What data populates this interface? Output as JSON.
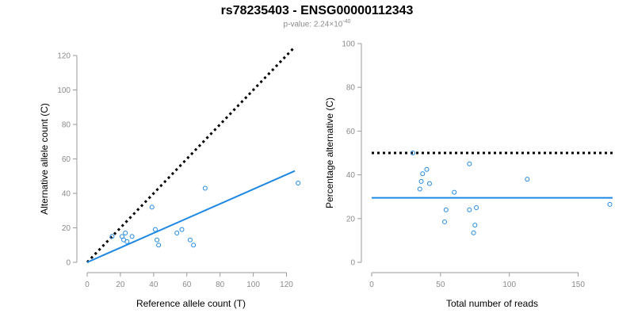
{
  "title": "rs78235403 - ENSG00000112343",
  "subtitle": {
    "prefix": "p-value: 2.24×10",
    "exponent": "-40"
  },
  "chart_data": [
    {
      "type": "scatter",
      "xlabel": "Reference allele count (T)",
      "ylabel": "Alternative allele count (C)",
      "xlim": [
        0,
        125
      ],
      "ylim": [
        0,
        120
      ],
      "xticks": [
        0,
        20,
        40,
        60,
        80,
        100,
        120
      ],
      "yticks": [
        0,
        20,
        40,
        60,
        80,
        100,
        120
      ],
      "points": {
        "x": [
          15,
          21,
          22,
          23,
          24,
          27,
          39,
          41,
          42,
          43,
          54,
          57,
          62,
          64,
          71,
          127
        ],
        "y": [
          15,
          15,
          13,
          17,
          12,
          15,
          32,
          19,
          13,
          10,
          17,
          19,
          13,
          10,
          43,
          46
        ]
      },
      "reference_line": {
        "style": "dotted",
        "color": "#000000",
        "x": [
          0,
          125
        ],
        "y": [
          0,
          125
        ]
      },
      "fit_line": {
        "style": "solid",
        "color": "#1e88e5",
        "x": [
          0,
          125
        ],
        "y": [
          0,
          53
        ]
      }
    },
    {
      "type": "scatter",
      "xlabel": "Total number of reads",
      "ylabel": "Percentage alternative (C)",
      "xlim": [
        0,
        175
      ],
      "ylim": [
        0,
        100
      ],
      "xticks": [
        0,
        50,
        100,
        150
      ],
      "yticks": [
        0,
        20,
        40,
        60,
        80,
        100
      ],
      "points": {
        "x": [
          30,
          35,
          36,
          37,
          40,
          42,
          53,
          54,
          60,
          71,
          71,
          74,
          75,
          76,
          113,
          173
        ],
        "y": [
          50,
          33.5,
          37,
          40.5,
          42.5,
          36,
          18.5,
          24,
          32,
          45,
          24,
          13.5,
          17,
          25,
          38,
          26.5
        ]
      },
      "reference_line": {
        "style": "dotted",
        "color": "#000000",
        "x": [
          0,
          175
        ],
        "y": [
          50,
          50
        ]
      },
      "fit_line": {
        "style": "solid",
        "color": "#1e88e5",
        "x": [
          0,
          175
        ],
        "y": [
          29.5,
          29.5
        ]
      }
    }
  ]
}
